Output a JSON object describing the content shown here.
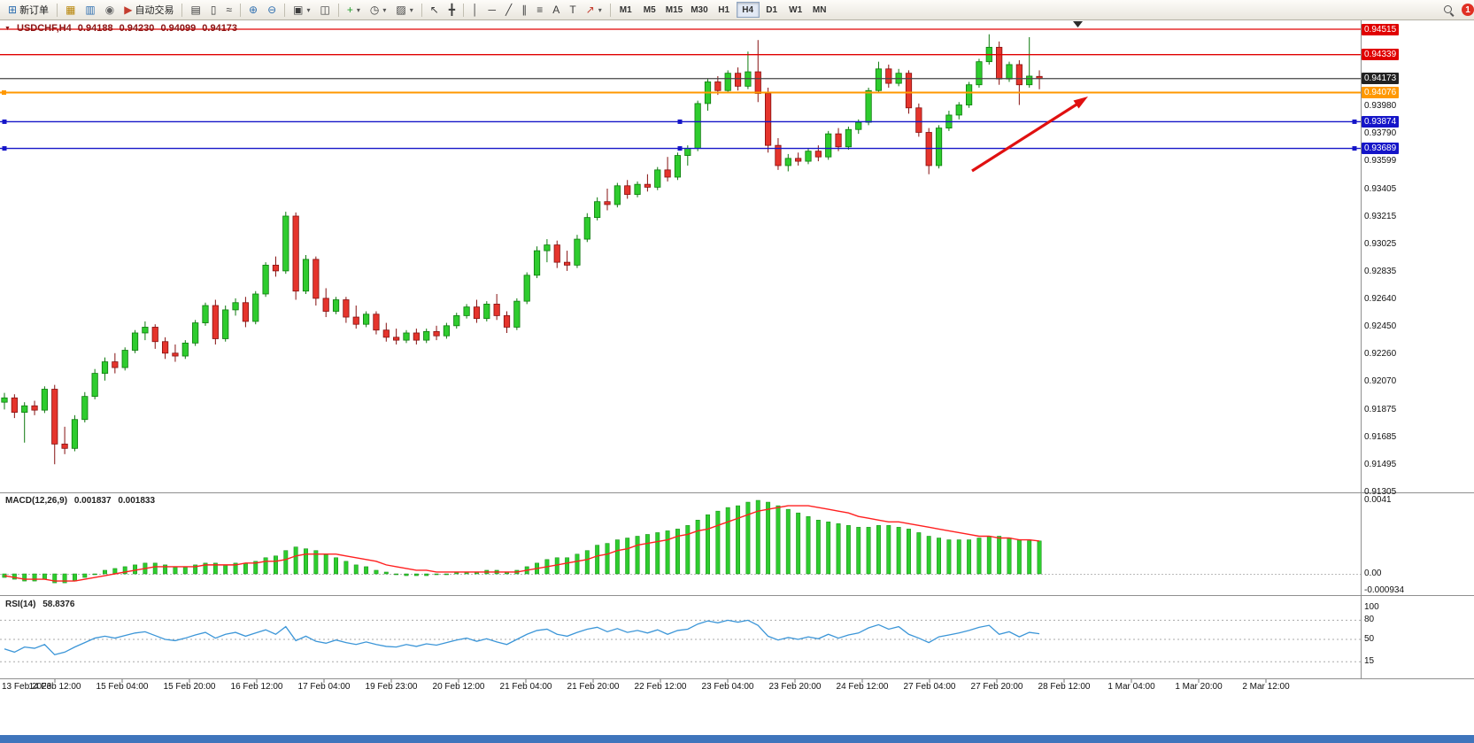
{
  "toolbar": {
    "new_order_label": "新订单",
    "auto_trading_label": "自动交易",
    "timeframes": [
      "M1",
      "M5",
      "M15",
      "M30",
      "H1",
      "H4",
      "D1",
      "W1",
      "MN"
    ],
    "active_timeframe": "H4",
    "notification_count": "1"
  },
  "icons": {
    "new_order": "⊞",
    "charts_profile": "▦",
    "market_watch": "▥",
    "navigator": "◉",
    "auto_trading": "▶",
    "bar_chart": "▤",
    "candle_chart": "▯",
    "line_chart": "≈",
    "zoom_in": "⊕",
    "zoom_out": "⊖",
    "new_chart": "▣",
    "tile_windows": "◫",
    "indicators": "+",
    "periods": "◷",
    "templates": "▨",
    "cursor": "↖",
    "crosshair": "╋",
    "vertical_line": "│",
    "horizontal_line": "─",
    "trendline": "╱",
    "channel": "∥",
    "fibonacci": "≡",
    "text": "A",
    "text_label": "T",
    "arrows_tool": "↗",
    "dropdown": "▾",
    "symbol_marker": "▼"
  },
  "header": {
    "symbol": "USDCHF,H4",
    "open": "0.94188",
    "high": "0.94230",
    "low": "0.94099",
    "close": "0.94173"
  },
  "price_axis": {
    "regular": [
      "0.93980",
      "0.93790",
      "0.93599",
      "0.93405",
      "0.93215",
      "0.93025",
      "0.92835",
      "0.92640",
      "0.92450",
      "0.92260",
      "0.92070",
      "0.91875",
      "0.91685",
      "0.91495",
      "0.91305"
    ],
    "badges": [
      {
        "label": "0.94515",
        "bg": "#e00000"
      },
      {
        "label": "0.94339",
        "bg": "#e00000"
      },
      {
        "label": "0.94173",
        "bg": "#222222"
      },
      {
        "label": "0.94076",
        "bg": "#ff9800"
      },
      {
        "label": "0.93874",
        "bg": "#1515c8"
      },
      {
        "label": "0.93689",
        "bg": "#1515c8"
      }
    ]
  },
  "time_axis": [
    "13 Feb 2023",
    "14 Feb 12:00",
    "15 Feb 04:00",
    "15 Feb 20:00",
    "16 Feb 12:00",
    "17 Feb 04:00",
    "19 Feb 23:00",
    "20 Feb 12:00",
    "21 Feb 04:00",
    "21 Feb 20:00",
    "22 Feb 12:00",
    "23 Feb 04:00",
    "23 Feb 20:00",
    "24 Feb 12:00",
    "27 Feb 04:00",
    "27 Feb 20:00",
    "28 Feb 12:00",
    "1 Mar 04:00",
    "1 Mar 20:00",
    "2 Mar 12:00"
  ],
  "macd_panel": {
    "name": "MACD(12,26,9)",
    "value_main": "0.001837",
    "value_signal": "0.001833",
    "scale_labels": [
      "0.0041",
      "0.00",
      "-0.000934"
    ]
  },
  "rsi_panel": {
    "name": "RSI(14)",
    "value": "58.8376",
    "scale_labels": [
      "100",
      "80",
      "50",
      "15"
    ]
  },
  "colors": {
    "bull": "#2ecc2e",
    "bull_border": "#0d7a0d",
    "bear": "#e5342c",
    "bear_border": "#861010",
    "macd_hist": "#2ecc2e",
    "macd_hist_border": "#128a12",
    "macd_signal": "#ff2020",
    "rsi_line": "#3c96d8",
    "arrow": "#e01010"
  },
  "chart_data": {
    "type": "candlestick",
    "symbol": "USDCHF",
    "timeframe": "H4",
    "ylim": [
      0.91305,
      0.9456
    ],
    "current_bar": {
      "open": 0.94188,
      "high": 0.9423,
      "low": 0.94099,
      "close": 0.94173
    },
    "horizontal_lines": [
      {
        "price": 0.94515,
        "color": "#e00000",
        "role": "resistance",
        "handles": false
      },
      {
        "price": 0.94339,
        "color": "#e00000",
        "role": "resistance",
        "handles": false
      },
      {
        "price": 0.94173,
        "color": "#444444",
        "role": "current-price",
        "handles": false
      },
      {
        "price": 0.94076,
        "color": "#ff9800",
        "role": "pivot",
        "handles": false
      },
      {
        "price": 0.93874,
        "color": "#1515c8",
        "role": "support",
        "handles": true
      },
      {
        "price": 0.93689,
        "color": "#1515c8",
        "role": "support",
        "handles": true
      }
    ],
    "ohlc": [
      [
        0.9193,
        0.91995,
        0.9188,
        0.9196
      ],
      [
        0.9196,
        0.91985,
        0.9182,
        0.9186
      ],
      [
        0.9186,
        0.9193,
        0.9165,
        0.91905
      ],
      [
        0.91905,
        0.9194,
        0.9184,
        0.91875
      ],
      [
        0.91875,
        0.9204,
        0.91855,
        0.9202
      ],
      [
        0.9202,
        0.9205,
        0.915,
        0.9164
      ],
      [
        0.9164,
        0.9176,
        0.9157,
        0.9161
      ],
      [
        0.9161,
        0.9184,
        0.9159,
        0.9181
      ],
      [
        0.9181,
        0.92,
        0.9179,
        0.9197
      ],
      [
        0.9197,
        0.9216,
        0.9195,
        0.9213
      ],
      [
        0.9213,
        0.9224,
        0.9208,
        0.9221
      ],
      [
        0.9221,
        0.9227,
        0.9213,
        0.9217
      ],
      [
        0.9217,
        0.9231,
        0.9215,
        0.9229
      ],
      [
        0.9229,
        0.9243,
        0.9227,
        0.9241
      ],
      [
        0.9241,
        0.9249,
        0.9236,
        0.9245
      ],
      [
        0.9245,
        0.9247,
        0.923,
        0.9235
      ],
      [
        0.9235,
        0.9238,
        0.9223,
        0.9227
      ],
      [
        0.9227,
        0.9233,
        0.9221,
        0.9225
      ],
      [
        0.9225,
        0.9236,
        0.9223,
        0.9234
      ],
      [
        0.9234,
        0.925,
        0.9232,
        0.9248
      ],
      [
        0.9248,
        0.9262,
        0.9246,
        0.926
      ],
      [
        0.926,
        0.9264,
        0.9233,
        0.9237
      ],
      [
        0.9237,
        0.926,
        0.9235,
        0.9257
      ],
      [
        0.9257,
        0.9265,
        0.9253,
        0.9262
      ],
      [
        0.9262,
        0.9266,
        0.9245,
        0.9249
      ],
      [
        0.9249,
        0.927,
        0.9247,
        0.9268
      ],
      [
        0.9268,
        0.929,
        0.9266,
        0.9288
      ],
      [
        0.9288,
        0.9294,
        0.928,
        0.9284
      ],
      [
        0.9284,
        0.9325,
        0.9282,
        0.9322
      ],
      [
        0.9322,
        0.93245,
        0.9264,
        0.927
      ],
      [
        0.927,
        0.9295,
        0.9268,
        0.9292
      ],
      [
        0.9292,
        0.9294,
        0.926,
        0.9265
      ],
      [
        0.9265,
        0.9272,
        0.9252,
        0.9256
      ],
      [
        0.9256,
        0.9266,
        0.9254,
        0.9264
      ],
      [
        0.9264,
        0.9266,
        0.9248,
        0.9252
      ],
      [
        0.9252,
        0.926,
        0.9244,
        0.9247
      ],
      [
        0.9247,
        0.9256,
        0.9245,
        0.9254
      ],
      [
        0.9254,
        0.9256,
        0.924,
        0.9243
      ],
      [
        0.9243,
        0.9248,
        0.9235,
        0.9238
      ],
      [
        0.9238,
        0.9244,
        0.9233,
        0.9236
      ],
      [
        0.9236,
        0.9243,
        0.9234,
        0.9241
      ],
      [
        0.9241,
        0.9244,
        0.9233,
        0.9236
      ],
      [
        0.9236,
        0.9244,
        0.9234,
        0.9242
      ],
      [
        0.9242,
        0.9246,
        0.9236,
        0.9239
      ],
      [
        0.9239,
        0.9248,
        0.9237,
        0.9246
      ],
      [
        0.9246,
        0.9255,
        0.9244,
        0.9253
      ],
      [
        0.9253,
        0.9261,
        0.9251,
        0.9259
      ],
      [
        0.9259,
        0.9264,
        0.9248,
        0.9251
      ],
      [
        0.9251,
        0.9263,
        0.9249,
        0.9261
      ],
      [
        0.9261,
        0.9268,
        0.925,
        0.9253
      ],
      [
        0.9253,
        0.9256,
        0.9241,
        0.9245
      ],
      [
        0.9245,
        0.9265,
        0.9243,
        0.9263
      ],
      [
        0.9263,
        0.9283,
        0.9261,
        0.9281
      ],
      [
        0.9281,
        0.9301,
        0.9279,
        0.9298
      ],
      [
        0.9298,
        0.9306,
        0.929,
        0.9302
      ],
      [
        0.9302,
        0.9305,
        0.9286,
        0.929
      ],
      [
        0.929,
        0.9298,
        0.9284,
        0.9288
      ],
      [
        0.9288,
        0.9309,
        0.9286,
        0.9306
      ],
      [
        0.9306,
        0.9324,
        0.9304,
        0.9321
      ],
      [
        0.9321,
        0.9335,
        0.9319,
        0.9332
      ],
      [
        0.9332,
        0.9341,
        0.9326,
        0.933
      ],
      [
        0.933,
        0.9345,
        0.9328,
        0.9343
      ],
      [
        0.9343,
        0.9347,
        0.9334,
        0.9337
      ],
      [
        0.9337,
        0.9346,
        0.9335,
        0.9344
      ],
      [
        0.9344,
        0.9351,
        0.9339,
        0.9342
      ],
      [
        0.9342,
        0.9356,
        0.934,
        0.9354
      ],
      [
        0.9354,
        0.9363,
        0.9346,
        0.9349
      ],
      [
        0.9349,
        0.9366,
        0.9347,
        0.9364
      ],
      [
        0.9364,
        0.9371,
        0.9357,
        0.9369
      ],
      [
        0.9369,
        0.9402,
        0.9367,
        0.94
      ],
      [
        0.94,
        0.9417,
        0.9395,
        0.9415
      ],
      [
        0.9415,
        0.9419,
        0.9406,
        0.9409
      ],
      [
        0.9409,
        0.9423,
        0.9407,
        0.9421
      ],
      [
        0.9421,
        0.9425,
        0.9409,
        0.9412
      ],
      [
        0.9412,
        0.9436,
        0.941,
        0.9422
      ],
      [
        0.9422,
        0.9444,
        0.9401,
        0.9407
      ],
      [
        0.9407,
        0.9411,
        0.9366,
        0.9371
      ],
      [
        0.9371,
        0.9376,
        0.9354,
        0.9357
      ],
      [
        0.9357,
        0.9365,
        0.9353,
        0.9362
      ],
      [
        0.9362,
        0.9366,
        0.9357,
        0.936
      ],
      [
        0.936,
        0.9369,
        0.9358,
        0.9367
      ],
      [
        0.9367,
        0.9371,
        0.936,
        0.9363
      ],
      [
        0.9363,
        0.9381,
        0.9361,
        0.9379
      ],
      [
        0.9379,
        0.9383,
        0.9367,
        0.937
      ],
      [
        0.937,
        0.9384,
        0.9368,
        0.9382
      ],
      [
        0.9382,
        0.9389,
        0.9379,
        0.9387
      ],
      [
        0.9387,
        0.9411,
        0.9385,
        0.9409
      ],
      [
        0.9409,
        0.9429,
        0.9407,
        0.9424
      ],
      [
        0.9424,
        0.9427,
        0.9411,
        0.9414
      ],
      [
        0.9414,
        0.9424,
        0.9412,
        0.9421
      ],
      [
        0.9421,
        0.9423,
        0.9393,
        0.9397
      ],
      [
        0.9397,
        0.94,
        0.9377,
        0.938
      ],
      [
        0.938,
        0.9383,
        0.9351,
        0.9357
      ],
      [
        0.9357,
        0.9385,
        0.9355,
        0.9383
      ],
      [
        0.9383,
        0.9395,
        0.9381,
        0.9392
      ],
      [
        0.9392,
        0.9401,
        0.9389,
        0.9399
      ],
      [
        0.9399,
        0.9415,
        0.9397,
        0.9413
      ],
      [
        0.9413,
        0.9431,
        0.9411,
        0.9429
      ],
      [
        0.9429,
        0.9448,
        0.9427,
        0.9439
      ],
      [
        0.9439,
        0.9443,
        0.9413,
        0.9417
      ],
      [
        0.9417,
        0.9429,
        0.9415,
        0.9427
      ],
      [
        0.9427,
        0.943,
        0.9399,
        0.9413
      ],
      [
        0.9413,
        0.9446,
        0.9411,
        0.9419
      ],
      [
        0.94188,
        0.9423,
        0.94099,
        0.94173
      ]
    ],
    "macd": {
      "params": "12,26,9",
      "scale": {
        "max": 0.0041,
        "zero": 0,
        "min": -0.000934
      },
      "histogram": [
        -0.0002,
        -0.0003,
        -0.0004,
        -0.0004,
        -0.0003,
        -0.0005,
        -0.0005,
        -0.0004,
        -0.0002,
        0.0,
        0.0002,
        0.0003,
        0.0004,
        0.0005,
        0.0006,
        0.0006,
        0.0005,
        0.0004,
        0.0004,
        0.0005,
        0.0006,
        0.0006,
        0.0005,
        0.0006,
        0.0006,
        0.0007,
        0.0009,
        0.001,
        0.0013,
        0.0015,
        0.0014,
        0.0013,
        0.0011,
        0.0009,
        0.0007,
        0.0005,
        0.0004,
        0.0002,
        0.0001,
        0.0,
        -0.0001,
        -0.0001,
        -0.0001,
        0.0,
        0.0,
        0.0001,
        0.0001,
        0.0001,
        0.0002,
        0.0002,
        0.0001,
        0.0002,
        0.0004,
        0.0006,
        0.0008,
        0.0009,
        0.0009,
        0.0011,
        0.0013,
        0.0016,
        0.0017,
        0.0019,
        0.002,
        0.0021,
        0.0022,
        0.0023,
        0.0024,
        0.0025,
        0.0027,
        0.003,
        0.0033,
        0.0035,
        0.0037,
        0.0038,
        0.004,
        0.0041,
        0.004,
        0.0038,
        0.0036,
        0.0034,
        0.0032,
        0.003,
        0.0029,
        0.0028,
        0.0027,
        0.0026,
        0.0026,
        0.0027,
        0.0027,
        0.0026,
        0.0025,
        0.0023,
        0.0021,
        0.002,
        0.0019,
        0.0019,
        0.0019,
        0.002,
        0.0021,
        0.0021,
        0.002,
        0.0019,
        0.00185,
        0.001837
      ],
      "signal": [
        -0.0001,
        -0.0002,
        -0.0003,
        -0.0003,
        -0.0003,
        -0.0004,
        -0.0004,
        -0.0004,
        -0.0003,
        -0.0002,
        -0.0001,
        0.0,
        0.0001,
        0.0002,
        0.0003,
        0.0004,
        0.0004,
        0.0004,
        0.0004,
        0.0004,
        0.0005,
        0.0005,
        0.0005,
        0.0005,
        0.0006,
        0.0006,
        0.0007,
        0.0007,
        0.0008,
        0.001,
        0.0011,
        0.0011,
        0.0011,
        0.0011,
        0.001,
        0.0009,
        0.0008,
        0.0007,
        0.0005,
        0.0004,
        0.0003,
        0.0002,
        0.0002,
        0.0001,
        0.0001,
        0.0001,
        0.0001,
        0.0001,
        0.0001,
        0.0001,
        0.0001,
        0.0001,
        0.0002,
        0.0003,
        0.0004,
        0.0005,
        0.0006,
        0.0007,
        0.0008,
        0.001,
        0.0011,
        0.0013,
        0.0014,
        0.0016,
        0.0017,
        0.0018,
        0.0019,
        0.0021,
        0.0022,
        0.0024,
        0.0025,
        0.0027,
        0.0029,
        0.0031,
        0.0033,
        0.0035,
        0.0036,
        0.0037,
        0.0038,
        0.0038,
        0.0038,
        0.0037,
        0.0036,
        0.0035,
        0.0034,
        0.0032,
        0.0031,
        0.003,
        0.0029,
        0.0029,
        0.0028,
        0.0027,
        0.0026,
        0.0025,
        0.0024,
        0.0023,
        0.0022,
        0.0021,
        0.0021,
        0.002,
        0.002,
        0.0019,
        0.0019,
        0.001833
      ]
    },
    "rsi": {
      "period": 14,
      "levels": [
        80,
        50,
        15
      ],
      "values": [
        35,
        30,
        38,
        36,
        42,
        26,
        30,
        38,
        45,
        52,
        55,
        52,
        56,
        60,
        62,
        56,
        50,
        48,
        52,
        57,
        61,
        52,
        58,
        61,
        55,
        60,
        65,
        58,
        70,
        48,
        55,
        47,
        44,
        49,
        45,
        42,
        46,
        42,
        39,
        38,
        42,
        39,
        43,
        41,
        45,
        49,
        52,
        47,
        51,
        46,
        42,
        50,
        58,
        64,
        66,
        58,
        55,
        61,
        66,
        69,
        62,
        67,
        61,
        64,
        60,
        65,
        58,
        64,
        66,
        74,
        79,
        76,
        80,
        77,
        80,
        72,
        55,
        49,
        53,
        50,
        54,
        51,
        58,
        52,
        57,
        60,
        68,
        73,
        66,
        70,
        58,
        52,
        45,
        54,
        57,
        60,
        64,
        69,
        72,
        58,
        62,
        54,
        61,
        58.8
      ]
    },
    "annotations": [
      {
        "type": "arrow",
        "color": "#e01010",
        "direction": "up-right",
        "note": "upward trend arrow over recent candles"
      },
      {
        "type": "chart-shift-marker",
        "color": "#2b2b2b"
      }
    ]
  }
}
